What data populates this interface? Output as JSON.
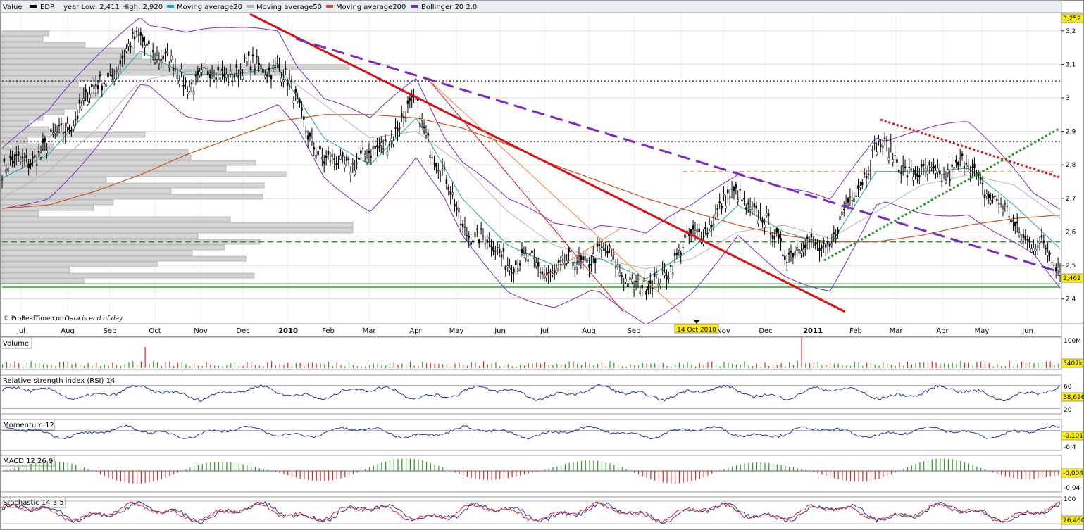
{
  "colors": {
    "background": "#ffffff",
    "grid": "#d8d8d8",
    "price_bar": "#000000",
    "ma20": "#1aa5a5",
    "ma50": "#b4b4b4",
    "ma200": "#c8551e",
    "bollinger": "#7a28c8",
    "trend_red": "#dd1111",
    "trend_purple": "#7a28c8",
    "fib": "#f08040",
    "support_green": "#118811",
    "dotted_gray": "#555555",
    "dotted_green": "#1a9a1a",
    "dotted_red": "#dd1111",
    "volume_pos": "#2a9a2a",
    "volume_neg": "#dd2a2a",
    "indicator_line": "#2233aa",
    "stoch_k": "#2233aa",
    "stoch_d": "#dd2222",
    "price_highlight": "#ffee00"
  },
  "header": {
    "value_label": "Value",
    "ticker": "EDP",
    "year_range": "year Low: 2,411 High: 2,920",
    "legend": [
      {
        "label": "Moving average20",
        "color": "#1aa5a5"
      },
      {
        "label": "Moving average50",
        "color": "#b4b4b4"
      },
      {
        "label": "Moving average200",
        "color": "#c8551e"
      },
      {
        "label": "Bollinger 20 2.0",
        "color": "#7a28c8"
      }
    ]
  },
  "footer_note": {
    "copyright": "© ProRealTime.com",
    "data_note": "Data is end of day"
  },
  "x_axis": {
    "months": [
      "Jul",
      "Aug",
      "Sep",
      "Oct",
      "Nov",
      "Dec",
      "2010",
      "Feb",
      "Mar",
      "Apr",
      "May",
      "Jun",
      "Jul",
      "Aug",
      "Sep",
      "Oct",
      "Nov",
      "Dec",
      "2011",
      "Feb",
      "Mar",
      "Apr",
      "May",
      "Jun"
    ],
    "cursor_label": "14 Oct 2010"
  },
  "price_panel": {
    "y_ticks": [
      "3,2",
      "3,1",
      "3",
      "2,9",
      "2,8",
      "2,7",
      "2,6",
      "2,5",
      "2,4"
    ],
    "top_tag": "3,252",
    "last_tag": "2,462"
  },
  "volume_panel": {
    "title": "Volume",
    "y_top": "100M",
    "last_tag": "5407k"
  },
  "rsi_panel": {
    "title": "Relative strength index (RSI) 14",
    "y_ticks": [
      "60",
      "20"
    ],
    "last_tag": "38,626"
  },
  "momentum_panel": {
    "title": "Momentum 12",
    "y_ticks": [
      "-0,4"
    ],
    "last_tag": "-0,101"
  },
  "macd_panel": {
    "title": "MACD 12 26 9",
    "y_ticks": [
      "-0,04"
    ],
    "last_tag": "-0,004"
  },
  "stoch_panel": {
    "title": "Stochastic 14 3 5",
    "y_ticks": [
      "100"
    ],
    "last_tag": "26,460"
  },
  "chart_data": {
    "type": "line",
    "title": "",
    "ticker": "EDP",
    "x": [
      "2009-07",
      "2009-08",
      "2009-09",
      "2009-10",
      "2009-11",
      "2009-12",
      "2010-01",
      "2010-02",
      "2010-03",
      "2010-04",
      "2010-05",
      "2010-06",
      "2010-07",
      "2010-08",
      "2010-09",
      "2010-10",
      "2010-11",
      "2010-12",
      "2011-01",
      "2011-02",
      "2011-03",
      "2011-04",
      "2011-05",
      "2011-06"
    ],
    "series": [
      {
        "name": "EDP",
        "values": [
          2.78,
          2.85,
          3.02,
          3.18,
          3.05,
          3.08,
          3.1,
          2.8,
          2.82,
          2.98,
          2.62,
          2.52,
          2.48,
          2.54,
          2.42,
          2.58,
          2.72,
          2.55,
          2.56,
          2.86,
          2.76,
          2.8,
          2.62,
          2.5
        ]
      },
      {
        "name": "Moving average20",
        "values": [
          2.76,
          2.83,
          2.98,
          3.14,
          3.07,
          3.07,
          3.09,
          2.88,
          2.8,
          2.94,
          2.7,
          2.56,
          2.5,
          2.52,
          2.46,
          2.55,
          2.68,
          2.6,
          2.56,
          2.78,
          2.78,
          2.79,
          2.68,
          2.55
        ]
      },
      {
        "name": "Moving average50",
        "values": [
          2.7,
          2.78,
          2.9,
          3.05,
          3.08,
          3.07,
          3.08,
          2.98,
          2.88,
          2.9,
          2.8,
          2.66,
          2.56,
          2.52,
          2.49,
          2.52,
          2.6,
          2.62,
          2.58,
          2.66,
          2.74,
          2.77,
          2.74,
          2.64
        ]
      },
      {
        "name": "Moving average200",
        "values": [
          2.67,
          2.68,
          2.72,
          2.77,
          2.83,
          2.88,
          2.93,
          2.95,
          2.95,
          2.94,
          2.91,
          2.86,
          2.8,
          2.75,
          2.7,
          2.66,
          2.62,
          2.59,
          2.57,
          2.57,
          2.59,
          2.62,
          2.64,
          2.65
        ]
      }
    ],
    "ylim": [
      2.33,
      3.25
    ],
    "y_ticks": [
      2.4,
      2.5,
      2.6,
      2.7,
      2.8,
      2.9,
      3.0,
      3.1,
      3.2
    ],
    "last_price": 2.462,
    "year_low": 2.411,
    "year_high": 2.92,
    "horizontal_levels": [
      3.05,
      2.87,
      2.57,
      2.445,
      2.435
    ],
    "grid": true,
    "legend_position": "top"
  }
}
